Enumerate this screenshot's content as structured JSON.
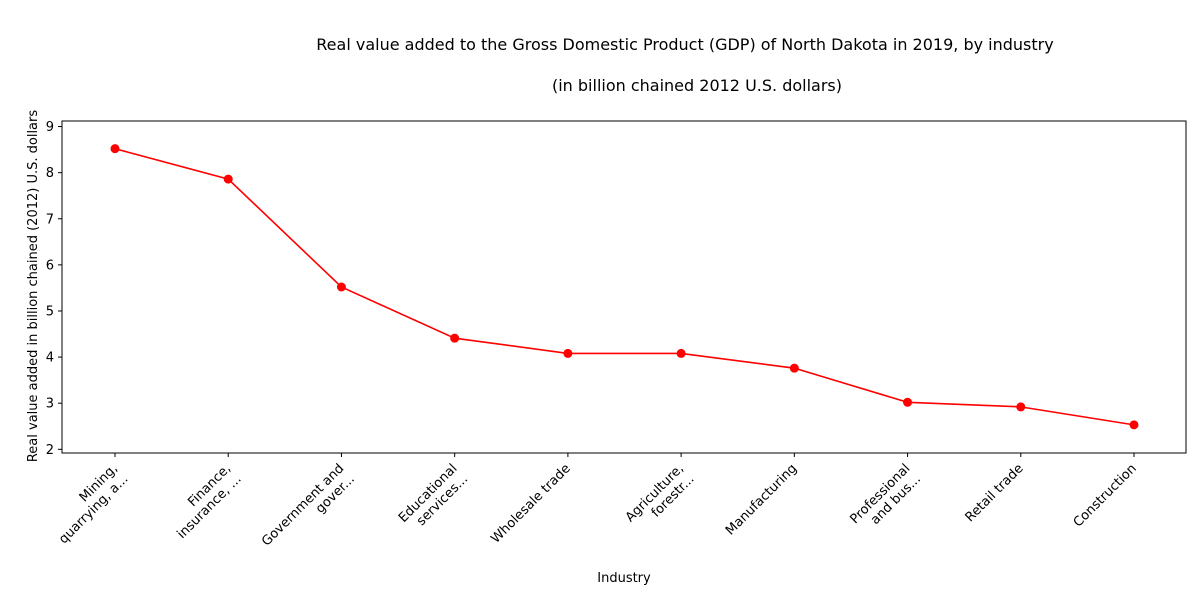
{
  "chart_data": {
    "type": "line",
    "title_line1": "Real value added to the Gross Domestic Product (GDP) of North Dakota in 2019, by industry",
    "title_line2": "(in billion chained 2012 U.S. dollars)",
    "xlabel": "Industry",
    "ylabel": "Real value added in billion chained (2012) U.S. dollars",
    "categories": [
      [
        "Mining,",
        "quarrying, a..."
      ],
      [
        "Finance,",
        "insurance, ..."
      ],
      [
        "Government and",
        "gover..."
      ],
      [
        "Educational",
        "services..."
      ],
      [
        "Wholesale trade"
      ],
      [
        "Agriculture,",
        "forestr..."
      ],
      [
        "Manufacturing"
      ],
      [
        "Professional",
        "and bus..."
      ],
      [
        "Retail trade"
      ],
      [
        "Construction"
      ]
    ],
    "series": [
      {
        "values": [
          8.52,
          7.86,
          5.52,
          4.41,
          4.08,
          4.08,
          3.76,
          3.02,
          2.92,
          2.53
        ],
        "color": "#ff0000"
      }
    ],
    "yticks": [
      2,
      3,
      4,
      5,
      6,
      7,
      8,
      9
    ],
    "ylim": [
      1.92,
      9.12
    ],
    "grid": false,
    "marker": "circle"
  }
}
